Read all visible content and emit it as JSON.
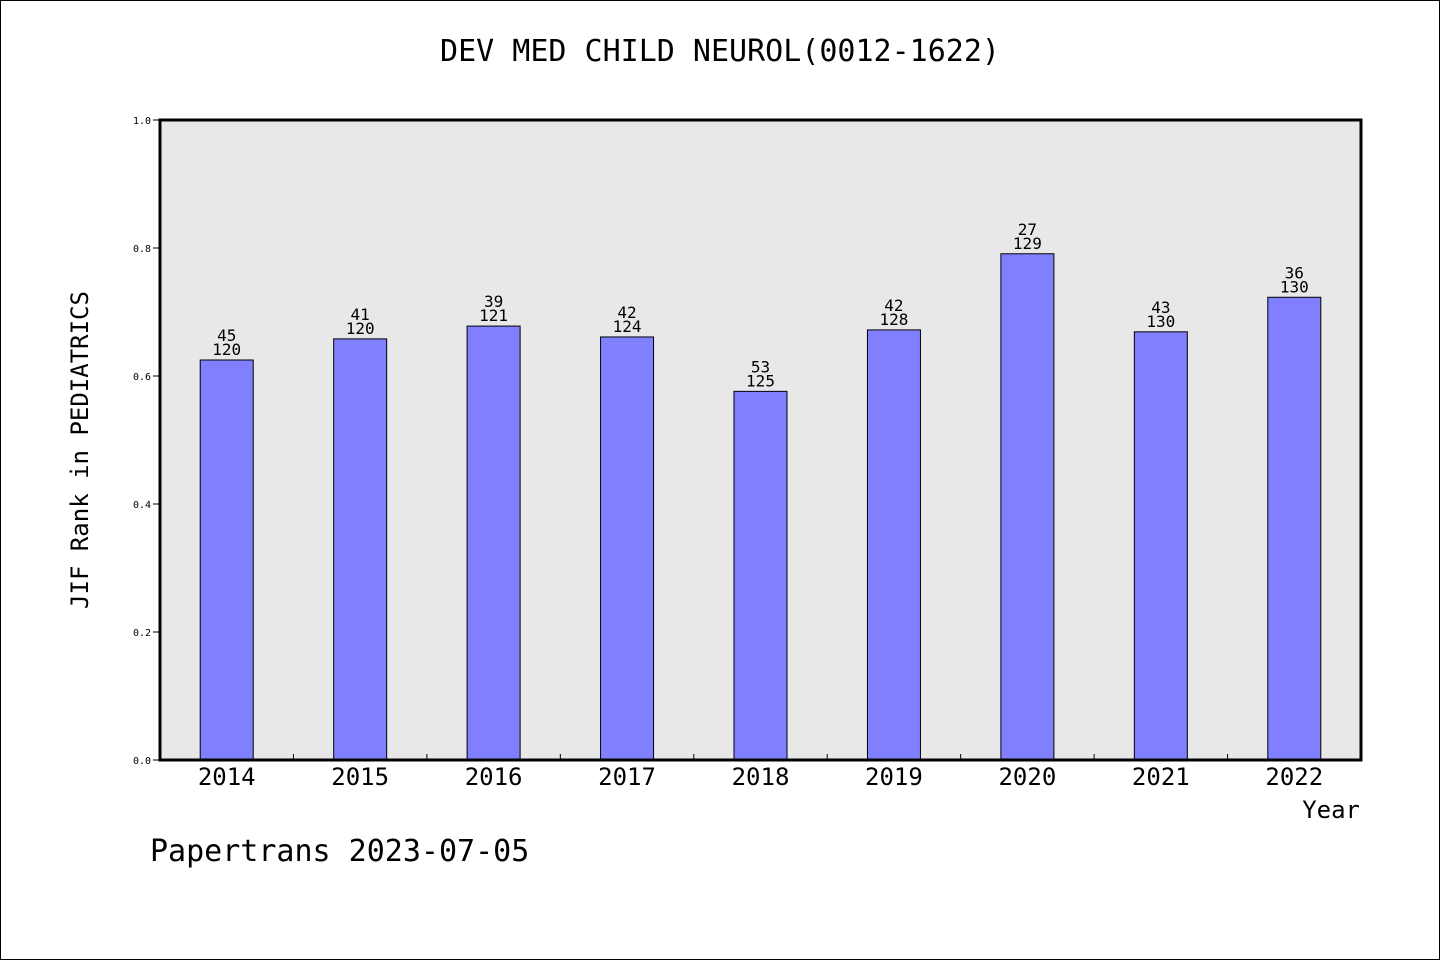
{
  "chart_data": {
    "type": "bar",
    "title": "DEV MED CHILD NEUROL(0012-1622)",
    "xlabel": "Year",
    "ylabel": "JIF Rank in PEDIATRICS",
    "categories": [
      "2014",
      "2015",
      "2016",
      "2017",
      "2018",
      "2019",
      "2020",
      "2021",
      "2022"
    ],
    "values": [
      0.625,
      0.658,
      0.678,
      0.661,
      0.576,
      0.672,
      0.791,
      0.669,
      0.723
    ],
    "rank_labels": [
      {
        "rank": "45",
        "total": "120"
      },
      {
        "rank": "41",
        "total": "120"
      },
      {
        "rank": "39",
        "total": "121"
      },
      {
        "rank": "42",
        "total": "124"
      },
      {
        "rank": "53",
        "total": "125"
      },
      {
        "rank": "42",
        "total": "128"
      },
      {
        "rank": "27",
        "total": "129"
      },
      {
        "rank": "43",
        "total": "130"
      },
      {
        "rank": "36",
        "total": "130"
      }
    ],
    "ylim": [
      0.0,
      1.0
    ],
    "yticks": [
      "0.0",
      "0.2",
      "0.4",
      "0.6",
      "0.8",
      "1.0"
    ],
    "grid": false,
    "bar_color": "#8080ff",
    "plot_background": "#e8e8e8"
  },
  "footer": {
    "watermark": "Papertrans 2023-07-05"
  }
}
